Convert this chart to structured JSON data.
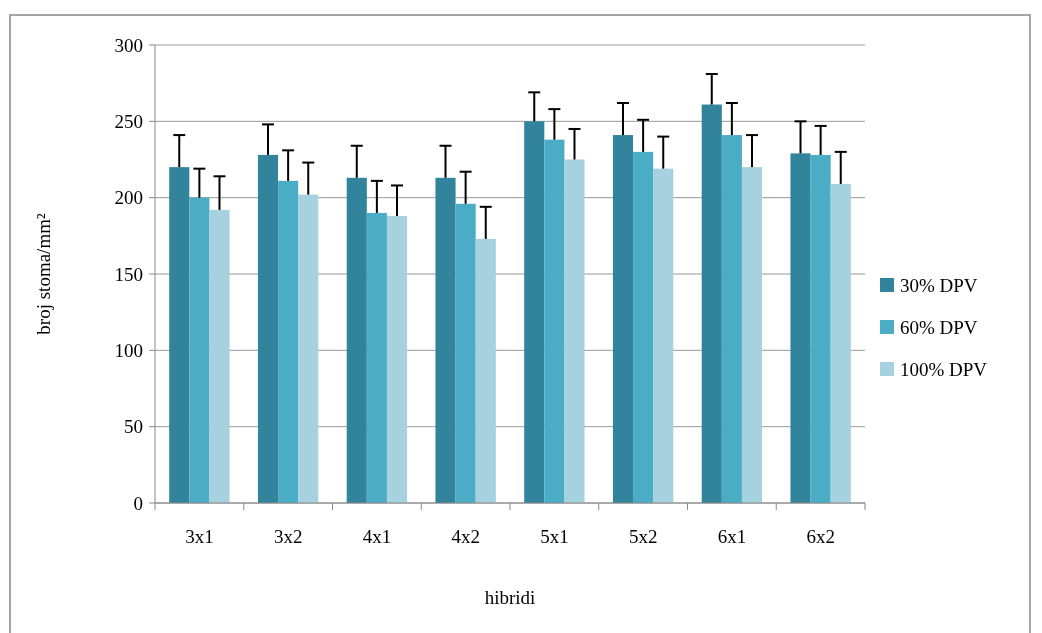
{
  "chart_data": {
    "type": "bar",
    "xlabel": "hibridi",
    "ylabel": "broj stoma/mm²",
    "categories": [
      "3x1",
      "3x2",
      "4x1",
      "4x2",
      "5x1",
      "5x2",
      "6x1",
      "6x2"
    ],
    "series": [
      {
        "name": "30% DPV",
        "color": "#31849b",
        "values": [
          220,
          228,
          213,
          213,
          250,
          241,
          261,
          229
        ],
        "errors": [
          [
            220,
            241
          ],
          [
            228,
            248
          ],
          [
            213,
            234
          ],
          [
            213,
            234
          ],
          [
            250,
            269
          ],
          [
            241,
            262
          ],
          [
            261,
            281
          ],
          [
            229,
            250
          ]
        ]
      },
      {
        "name": "60% DPV",
        "color": "#4bacc6",
        "values": [
          200,
          211,
          190,
          196,
          238,
          230,
          241,
          228
        ],
        "errors": [
          [
            200,
            219
          ],
          [
            211,
            231
          ],
          [
            190,
            211
          ],
          [
            196,
            217
          ],
          [
            238,
            258
          ],
          [
            230,
            251
          ],
          [
            241,
            262
          ],
          [
            228,
            247
          ]
        ]
      },
      {
        "name": "100% DPV",
        "color": "#a5d2de",
        "values": [
          192,
          202,
          188,
          173,
          225,
          219,
          220,
          209
        ],
        "errors": [
          [
            192,
            214
          ],
          [
            202,
            223
          ],
          [
            188,
            208
          ],
          [
            173,
            194
          ],
          [
            225,
            245
          ],
          [
            219,
            240
          ],
          [
            220,
            241
          ],
          [
            209,
            230
          ]
        ]
      }
    ],
    "ylim": [
      0,
      300
    ],
    "yticks": [
      0,
      50,
      100,
      150,
      200,
      250,
      300
    ],
    "grid": "y",
    "legend": "right"
  }
}
